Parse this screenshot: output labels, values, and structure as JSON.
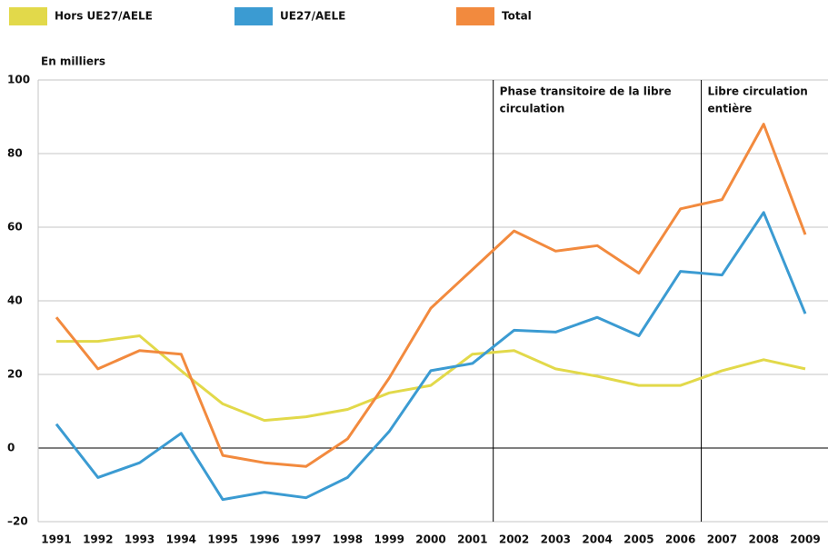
{
  "chart_data": {
    "type": "line",
    "y_label": "En milliers",
    "categories": [
      "1991",
      "1992",
      "1993",
      "1994",
      "1995",
      "1996",
      "1997",
      "1998",
      "1999",
      "2000",
      "2001",
      "2002",
      "2003",
      "2004",
      "2005",
      "2006",
      "2007",
      "2008",
      "2009"
    ],
    "series": [
      {
        "name": "Hors UE27/AELE",
        "color": "#e2d94a",
        "values": [
          29,
          29,
          30.5,
          21,
          12,
          7.5,
          8.5,
          10.5,
          15,
          17,
          25.5,
          26.5,
          21.5,
          19.5,
          17,
          17,
          21,
          24,
          21.5
        ]
      },
      {
        "name": "UE27/AELE",
        "color": "#3b9bd2",
        "values": [
          6.5,
          -8,
          -4,
          4,
          -14,
          -12,
          -13.5,
          -8,
          4.5,
          21,
          23,
          32,
          31.5,
          35.5,
          30.5,
          48,
          47,
          64,
          36.5
        ]
      },
      {
        "name": "Total",
        "color": "#f28a3e",
        "values": [
          35.5,
          21.5,
          26.5,
          25.5,
          -2,
          -4,
          -5,
          2.5,
          19,
          38,
          48.5,
          59,
          53.5,
          55,
          47.5,
          65,
          67.5,
          88,
          58
        ]
      }
    ],
    "ylim": [
      -20,
      100
    ],
    "yticks": [
      {
        "value": -20,
        "label": "–20"
      },
      0,
      20,
      40,
      60,
      80,
      100
    ],
    "grid": true,
    "legend": "top",
    "annotations": [
      {
        "start": "2002",
        "lines": [
          "Phase transitoire de la libre",
          "circulation"
        ]
      },
      {
        "start": "2007",
        "lines": [
          "Libre circulation",
          "entière"
        ]
      }
    ]
  }
}
